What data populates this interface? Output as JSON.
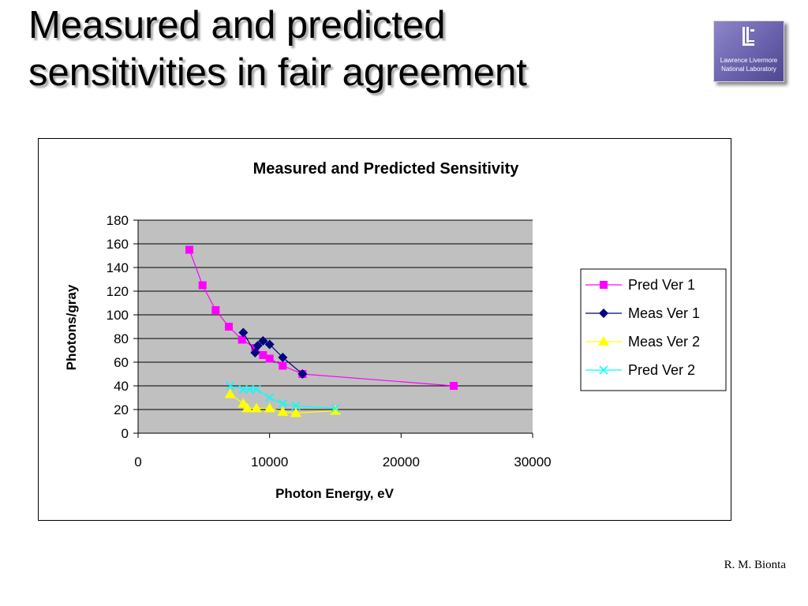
{
  "slide": {
    "title_line1": "Measured and predicted",
    "title_line2": "sensitivities in fair agreement",
    "author": "R. M. Bionta"
  },
  "logo": {
    "line1": "Lawrence Livermore",
    "line2": "National Laboratory",
    "icon": "llnl-logo-icon"
  },
  "chart_data": {
    "type": "scatter",
    "title": "Measured and Predicted Sensitivity",
    "xlabel": "Photon Energy, eV",
    "ylabel": "Photons/gray",
    "xlim": [
      0,
      30000
    ],
    "ylim": [
      0,
      180
    ],
    "xticks": [
      0,
      10000,
      20000,
      30000
    ],
    "yticks": [
      0,
      20,
      40,
      60,
      80,
      100,
      120,
      140,
      160,
      180
    ],
    "grid": "horizontal",
    "plot_background": "#c0c0c0",
    "legend_position": "right",
    "series": [
      {
        "name": "Pred Ver 1",
        "color": "#ff00ff",
        "marker": "square",
        "x": [
          3900,
          4900,
          5900,
          6900,
          7900,
          8900,
          9500,
          10000,
          11000,
          12500,
          24000
        ],
        "y": [
          155,
          125,
          104,
          90,
          79,
          72,
          66,
          63,
          57,
          50,
          40
        ]
      },
      {
        "name": "Meas Ver 1",
        "color": "#000080",
        "marker": "diamond",
        "x": [
          8000,
          8900,
          9100,
          9500,
          10000,
          11000,
          12500
        ],
        "y": [
          85,
          68,
          74,
          78,
          75,
          64,
          50
        ]
      },
      {
        "name": "Meas Ver 2",
        "color": "#ffff00",
        "marker": "triangle",
        "x": [
          7000,
          8000,
          8300,
          9000,
          10000,
          11000,
          12000,
          15000
        ],
        "y": [
          33,
          25,
          21,
          21,
          21,
          18,
          17,
          19
        ]
      },
      {
        "name": "Pred Ver 2",
        "color": "#00ffff",
        "marker": "x",
        "x": [
          7000,
          8000,
          8500,
          9000,
          10000,
          11000,
          12000,
          15000
        ],
        "y": [
          40,
          37,
          37,
          37,
          30,
          25,
          23,
          21
        ]
      }
    ]
  }
}
